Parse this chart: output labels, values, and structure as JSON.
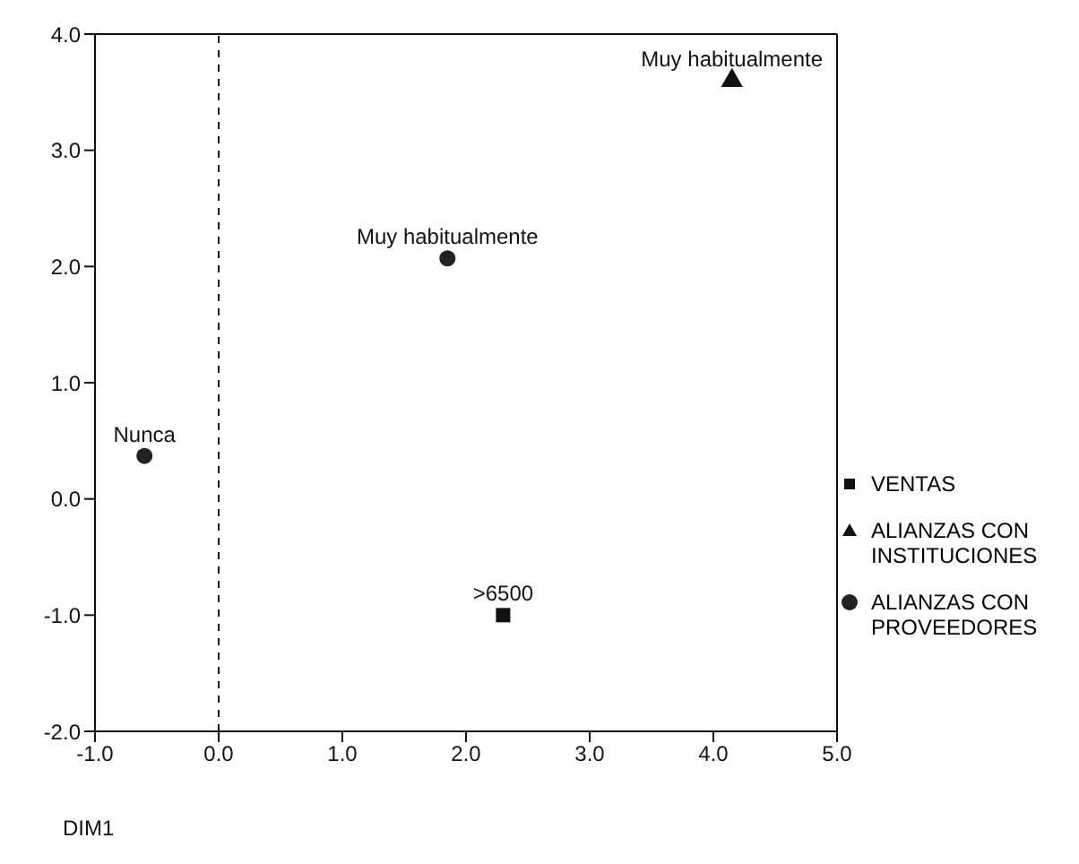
{
  "chart_data": {
    "type": "scatter",
    "xlabel": "DIM1",
    "xlim": [
      -1,
      5
    ],
    "ylim": [
      -2,
      4
    ],
    "xticks": [
      {
        "value": -1,
        "label": "-1.0"
      },
      {
        "value": 0,
        "label": "0.0"
      },
      {
        "value": 1,
        "label": "1.0"
      },
      {
        "value": 2,
        "label": "2.0"
      },
      {
        "value": 3,
        "label": "3.0"
      },
      {
        "value": 4,
        "label": "4.0"
      },
      {
        "value": 5,
        "label": "5.0"
      }
    ],
    "yticks": [
      {
        "value": -2,
        "label": "-2.0"
      },
      {
        "value": -1,
        "label": "-1.0"
      },
      {
        "value": 0,
        "label": "0.0"
      },
      {
        "value": 1,
        "label": "1.0"
      },
      {
        "value": 2,
        "label": "2.0"
      },
      {
        "value": 3,
        "label": "3.0"
      },
      {
        "value": 4,
        "label": "4.0"
      }
    ],
    "legend": "right",
    "series": [
      {
        "name": "VENTAS",
        "color": "#111111",
        "marker": "square",
        "x": [
          2.3
        ],
        "values": [
          -1.0
        ]
      },
      {
        "name": "ALIANZAS CON INSTITUCIONES",
        "color": "#111111",
        "marker": "triangle",
        "x": [
          4.15
        ],
        "values": [
          3.6
        ]
      },
      {
        "name": "ALIANZAS CON PROVEEDORES",
        "color": "#222222",
        "marker": "circle",
        "x": [
          1.85,
          -0.6
        ],
        "values": [
          2.07,
          0.37
        ]
      }
    ],
    "ref_lines": [
      {
        "axis": "x",
        "value": 0,
        "line_style": "dashed",
        "color": "#111111"
      }
    ],
    "annotations": [
      {
        "text": ">6500",
        "x": 2.3,
        "y": -1.0
      },
      {
        "text": "Muy habitualmente",
        "x": 4.15,
        "y": 3.6
      },
      {
        "text": "Muy habitualmente",
        "x": 1.85,
        "y": 2.07
      },
      {
        "text": "Nunca",
        "x": -0.6,
        "y": 0.37
      }
    ]
  }
}
